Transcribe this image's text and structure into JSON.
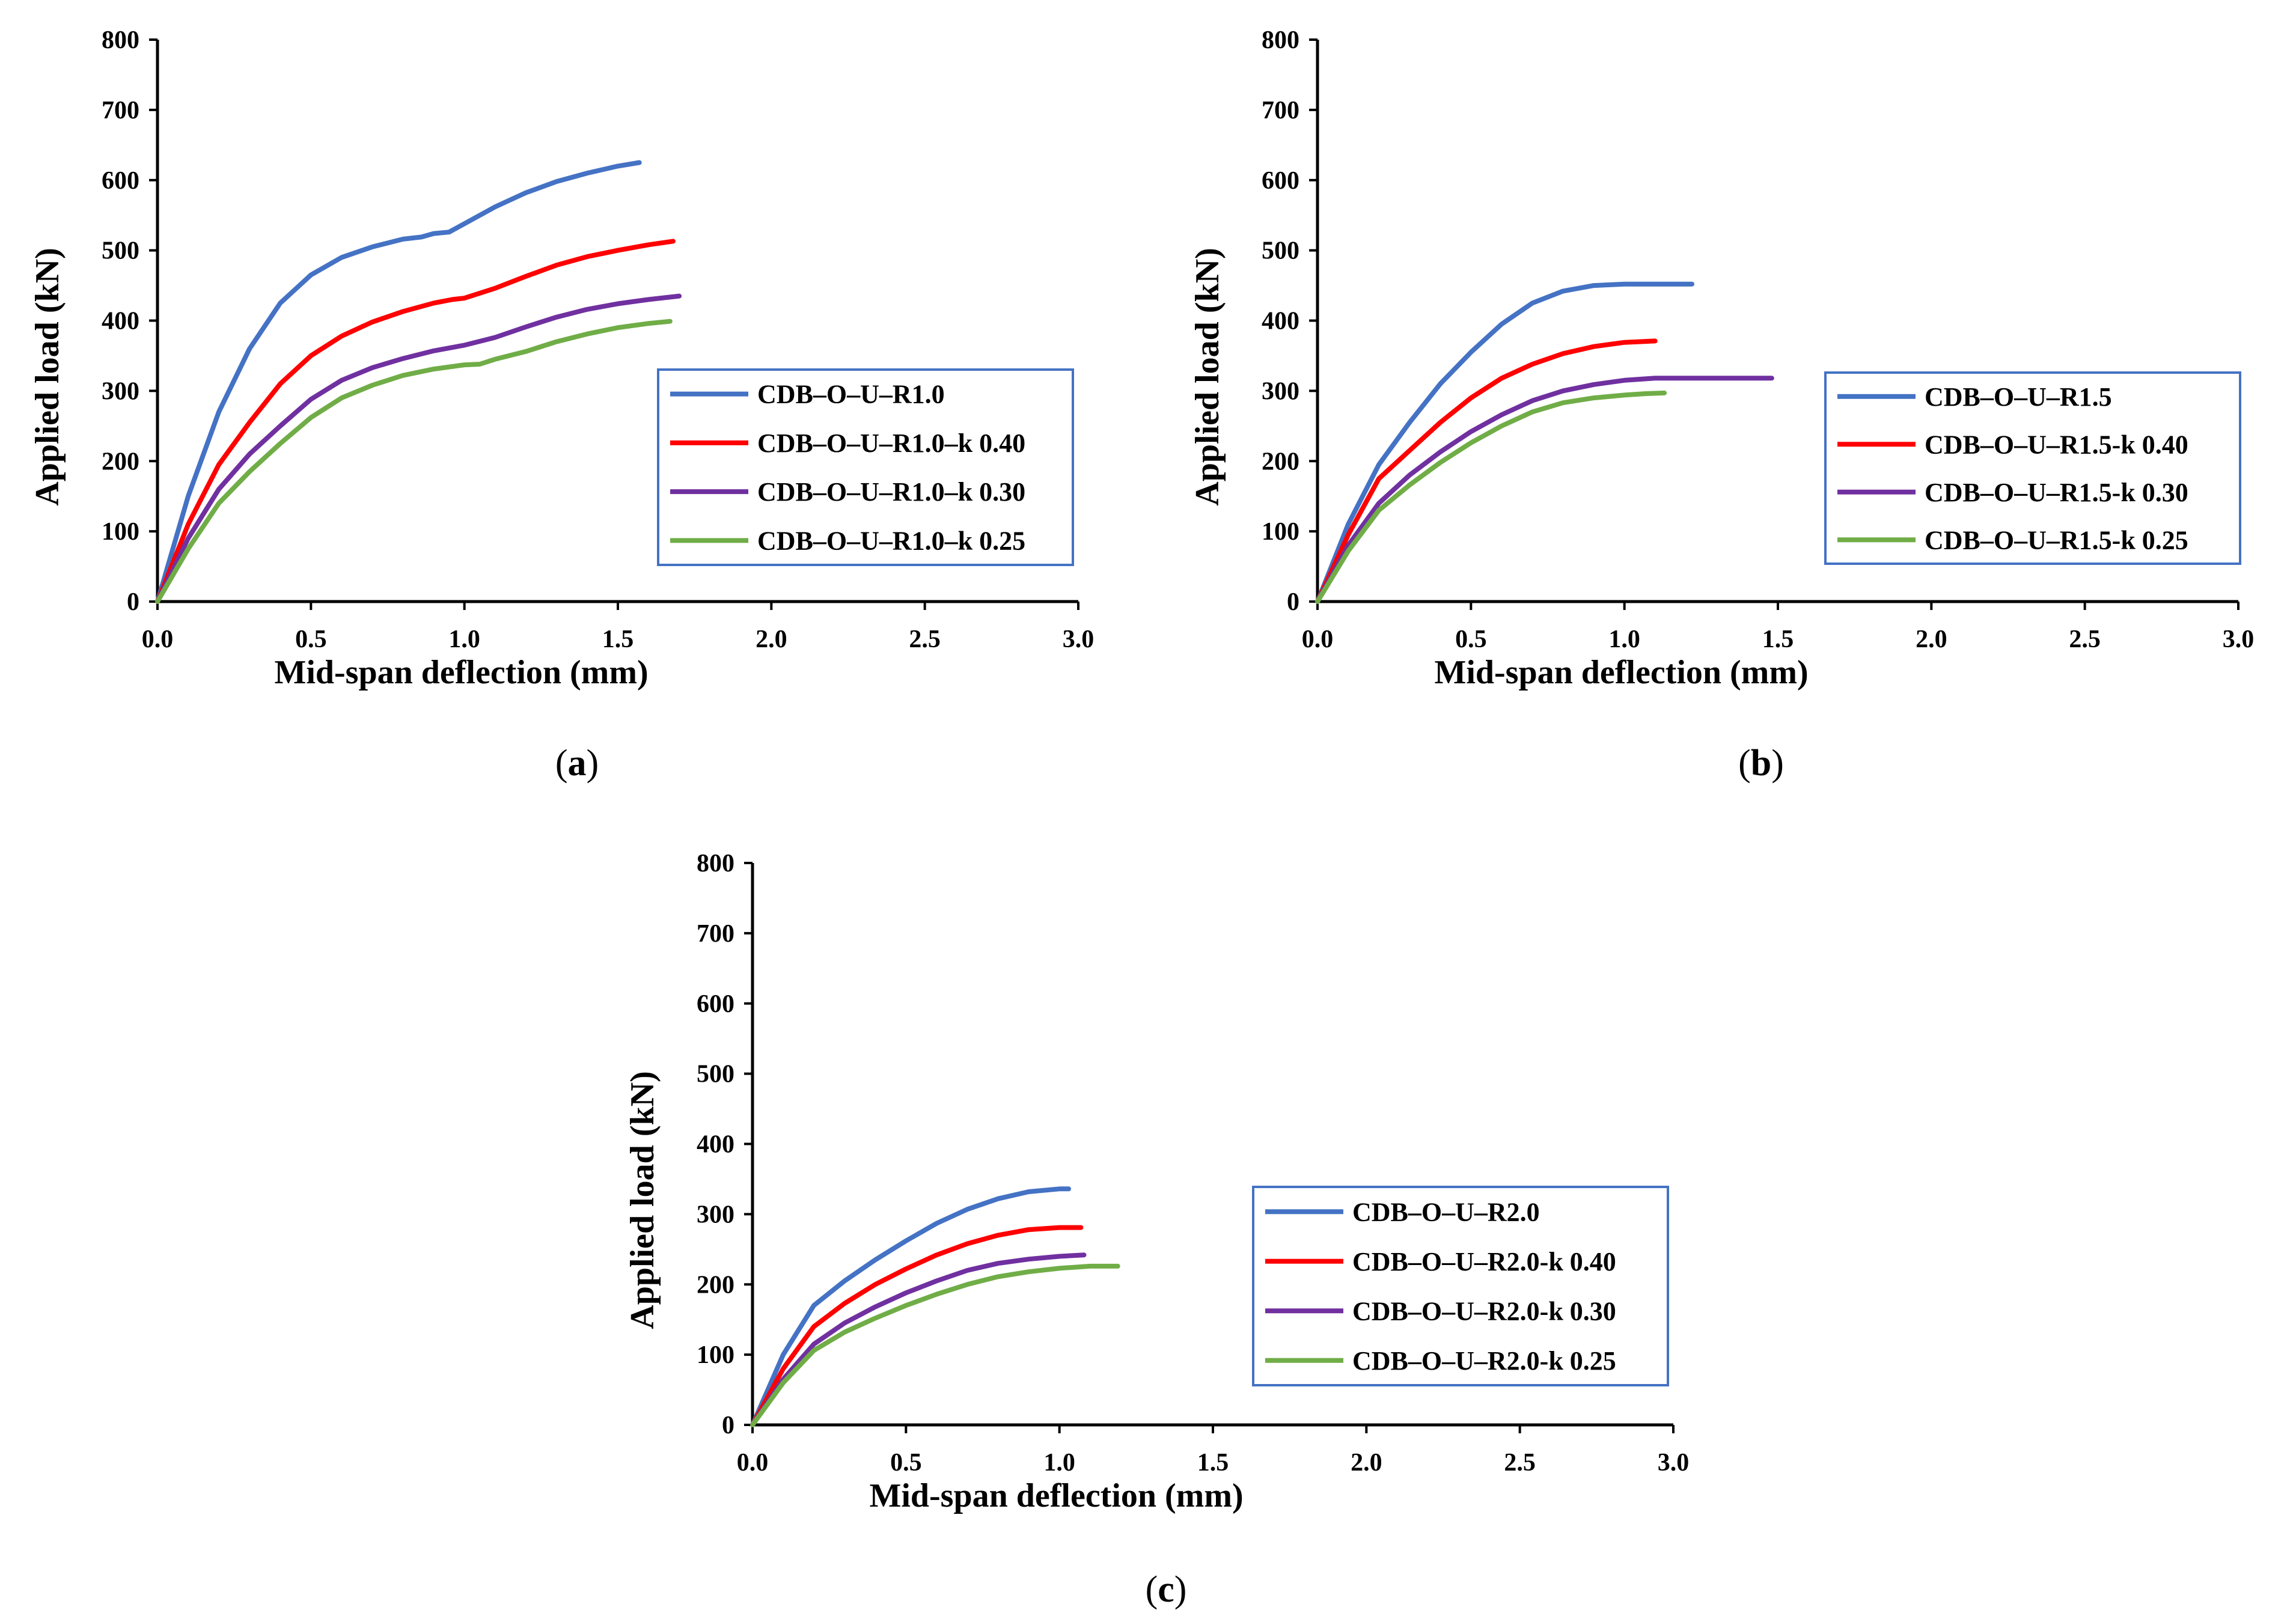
{
  "chart_data": [
    {
      "id": "a",
      "type": "line",
      "caption_label": "a",
      "xlabel": "Mid-span deflection (mm)",
      "ylabel": "Applied load (kN)",
      "xlim": [
        0,
        3.0
      ],
      "ylim": [
        0,
        800
      ],
      "xticks": [
        "0.0",
        "0.5",
        "1.0",
        "1.5",
        "2.0",
        "2.5",
        "3.0"
      ],
      "yticks": [
        "0",
        "100",
        "200",
        "300",
        "400",
        "500",
        "600",
        "700",
        "800"
      ],
      "grid": false,
      "legend_position": "right-middle",
      "series": [
        {
          "name": "CDB–O–U–R1.0",
          "color": "#4472C4",
          "x": [
            0,
            0.1,
            0.2,
            0.3,
            0.4,
            0.5,
            0.6,
            0.7,
            0.8,
            0.86,
            0.9,
            0.95,
            1.0,
            1.1,
            1.2,
            1.3,
            1.4,
            1.5,
            1.57
          ],
          "y": [
            0,
            150,
            270,
            360,
            425,
            465,
            490,
            505,
            516,
            519,
            524,
            526,
            538,
            562,
            582,
            598,
            610,
            620,
            625
          ]
        },
        {
          "name": "CDB–O–U–R1.0–k 0.40",
          "color": "#FF0000",
          "x": [
            0,
            0.1,
            0.2,
            0.3,
            0.4,
            0.5,
            0.6,
            0.7,
            0.8,
            0.9,
            0.96,
            1.0,
            1.1,
            1.2,
            1.3,
            1.4,
            1.5,
            1.6,
            1.68
          ],
          "y": [
            0,
            110,
            195,
            255,
            310,
            350,
            378,
            398,
            413,
            425,
            430,
            432,
            446,
            463,
            479,
            491,
            500,
            508,
            513
          ]
        },
        {
          "name": "CDB–O–U–R1.0–k 0.30",
          "color": "#7030A0",
          "x": [
            0,
            0.1,
            0.2,
            0.3,
            0.4,
            0.5,
            0.6,
            0.7,
            0.8,
            0.9,
            1.0,
            1.1,
            1.2,
            1.3,
            1.4,
            1.5,
            1.6,
            1.7
          ],
          "y": [
            0,
            90,
            160,
            210,
            250,
            288,
            315,
            333,
            346,
            357,
            365,
            376,
            391,
            405,
            416,
            424,
            430,
            435
          ]
        },
        {
          "name": "CDB–O–U–R1.0–k 0.25",
          "color": "#70AD47",
          "x": [
            0,
            0.1,
            0.2,
            0.3,
            0.4,
            0.5,
            0.6,
            0.7,
            0.8,
            0.9,
            1.0,
            1.05,
            1.1,
            1.2,
            1.3,
            1.4,
            1.5,
            1.6,
            1.67
          ],
          "y": [
            0,
            75,
            140,
            185,
            225,
            262,
            290,
            308,
            322,
            331,
            337,
            338,
            345,
            356,
            370,
            381,
            390,
            396,
            399
          ]
        }
      ]
    },
    {
      "id": "b",
      "type": "line",
      "caption_label": "b",
      "xlabel": "Mid-span deflection (mm)",
      "ylabel": "Applied load (kN)",
      "xlim": [
        0,
        3.0
      ],
      "ylim": [
        0,
        800
      ],
      "xticks": [
        "0.0",
        "0.5",
        "1.0",
        "1.5",
        "2.0",
        "2.5",
        "3.0"
      ],
      "yticks": [
        "0",
        "100",
        "200",
        "300",
        "400",
        "500",
        "600",
        "700",
        "800"
      ],
      "grid": false,
      "legend_position": "right-middle",
      "series": [
        {
          "name": "CDB–O–U–R1.5",
          "color": "#4472C4",
          "x": [
            0,
            0.1,
            0.2,
            0.3,
            0.4,
            0.5,
            0.6,
            0.7,
            0.8,
            0.9,
            1.0,
            1.1,
            1.22
          ],
          "y": [
            0,
            110,
            195,
            255,
            310,
            355,
            395,
            425,
            442,
            450,
            452,
            452,
            452
          ]
        },
        {
          "name": "CDB–O–U–R1.5-k 0.40",
          "color": "#FF0000",
          "x": [
            0,
            0.1,
            0.2,
            0.3,
            0.4,
            0.5,
            0.6,
            0.7,
            0.8,
            0.9,
            1.0,
            1.1
          ],
          "y": [
            0,
            95,
            175,
            215,
            255,
            290,
            318,
            338,
            353,
            363,
            369,
            371
          ]
        },
        {
          "name": "CDB–O–U–R1.5-k 0.30",
          "color": "#7030A0",
          "x": [
            0,
            0.1,
            0.2,
            0.3,
            0.4,
            0.5,
            0.6,
            0.7,
            0.8,
            0.9,
            1.0,
            1.1,
            1.3,
            1.48
          ],
          "y": [
            0,
            80,
            140,
            180,
            213,
            242,
            266,
            286,
            300,
            309,
            315,
            318,
            318,
            318
          ]
        },
        {
          "name": "CDB–O–U–R1.5-k 0.25",
          "color": "#70AD47",
          "x": [
            0,
            0.1,
            0.2,
            0.3,
            0.4,
            0.5,
            0.6,
            0.7,
            0.8,
            0.9,
            1.0,
            1.07,
            1.13
          ],
          "y": [
            0,
            72,
            130,
            166,
            198,
            226,
            250,
            270,
            283,
            290,
            294,
            296,
            297
          ]
        }
      ]
    },
    {
      "id": "c",
      "type": "line",
      "caption_label": "c",
      "xlabel": "Mid-span deflection (mm)",
      "ylabel": "Applied load (kN)",
      "xlim": [
        0,
        3.0
      ],
      "ylim": [
        0,
        800
      ],
      "xticks": [
        "0.0",
        "0.5",
        "1.0",
        "1.5",
        "2.0",
        "2.5",
        "3.0"
      ],
      "yticks": [
        "0",
        "100",
        "200",
        "300",
        "400",
        "500",
        "600",
        "700",
        "800"
      ],
      "grid": false,
      "legend_position": "right-middle",
      "series": [
        {
          "name": "CDB–O–U–R2.0",
          "color": "#4472C4",
          "x": [
            0,
            0.1,
            0.2,
            0.3,
            0.4,
            0.5,
            0.6,
            0.7,
            0.8,
            0.9,
            1.0,
            1.03
          ],
          "y": [
            0,
            100,
            170,
            205,
            235,
            262,
            287,
            307,
            322,
            332,
            336,
            336
          ]
        },
        {
          "name": "CDB–O–U–R2.0-k 0.40",
          "color": "#FF0000",
          "x": [
            0,
            0.1,
            0.2,
            0.3,
            0.4,
            0.5,
            0.6,
            0.7,
            0.8,
            0.9,
            1.0,
            1.07
          ],
          "y": [
            0,
            80,
            140,
            173,
            200,
            222,
            242,
            258,
            270,
            278,
            281,
            281
          ]
        },
        {
          "name": "CDB–O–U–R2.0-k 0.30",
          "color": "#7030A0",
          "x": [
            0,
            0.1,
            0.2,
            0.3,
            0.4,
            0.5,
            0.6,
            0.7,
            0.8,
            0.9,
            1.0,
            1.08
          ],
          "y": [
            0,
            65,
            115,
            145,
            168,
            188,
            205,
            220,
            230,
            236,
            240,
            242
          ]
        },
        {
          "name": "CDB–O–U–R2.0-k 0.25",
          "color": "#70AD47",
          "x": [
            0,
            0.1,
            0.2,
            0.3,
            0.4,
            0.5,
            0.6,
            0.7,
            0.8,
            0.9,
            1.0,
            1.1,
            1.19
          ],
          "y": [
            0,
            60,
            106,
            132,
            152,
            170,
            186,
            200,
            211,
            218,
            223,
            226,
            226
          ]
        }
      ]
    }
  ]
}
